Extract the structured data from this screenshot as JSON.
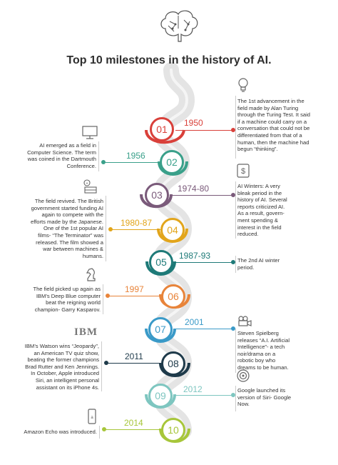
{
  "title": "Top 10 milestones in the history of AI.",
  "icons": {
    "brain": "brain-icon",
    "bulb": "lightbulb-icon",
    "monitor": "monitor-icon",
    "dollar": "dollar-sign-icon",
    "money": "coins-icon",
    "chess": "chess-knight-icon",
    "camera": "movie-camera-icon",
    "target": "target-icon",
    "echo": "amazon-echo-icon"
  },
  "ibm_logo": "IBM",
  "milestones": [
    {
      "number": "01",
      "year": "1950",
      "color": "#d9403a",
      "side": "right",
      "text": [
        "The 1st advancement in the",
        "field made by Alan Turing",
        "through the Turing Test. It said",
        "if a machine could carry on a",
        "conversation that could not be",
        "differentiated from that of a",
        "human, then the machine had",
        "begun “thinking”."
      ]
    },
    {
      "number": "02",
      "year": "1956",
      "color": "#3aa08a",
      "side": "left",
      "text": [
        "AI emerged as a field in",
        "Computer Science. The term",
        "was coined in the Dartmouth",
        "Conference."
      ]
    },
    {
      "number": "03",
      "year": "1974-80",
      "color": "#7a5a7a",
      "side": "right",
      "text": [
        "AI Winters: A very",
        "bleak period in the",
        "history of AI. Several",
        "reports criticized AI.",
        "As a result, govern-",
        "ment spending &",
        "interest in the field",
        "reduced."
      ]
    },
    {
      "number": "04",
      "year": "1980-87",
      "color": "#e2a51b",
      "side": "left",
      "text": [
        "The field revived. The British",
        "government started funding AI",
        "again to compete with the",
        "efforts made by the Japanese.",
        "One of the 1st popular AI",
        "films- “The Terminator” was",
        "released. The film showed a",
        "war between machines &",
        "humans."
      ]
    },
    {
      "number": "05",
      "year": "1987-93",
      "color": "#1e7a78",
      "side": "right",
      "text": [
        "The 2nd AI winter",
        "period."
      ]
    },
    {
      "number": "06",
      "year": "1997",
      "color": "#e8843a",
      "side": "left",
      "text": [
        "The field picked up again as",
        "IBM’s Deep Blue computer",
        "beat the reigning world",
        "champion- Garry Kasparov."
      ]
    },
    {
      "number": "07",
      "year": "2001",
      "color": "#3a9ac8",
      "side": "right",
      "text": [
        "Steven Spielberg",
        "releases “A.I. Artificial",
        "Intelligence”- a tech",
        "noir/drama on a",
        "robotic boy who",
        "dreams to be human."
      ]
    },
    {
      "number": "08",
      "year": "2011",
      "color": "#1e3a4a",
      "side": "left",
      "text": [
        "IBM’s Watson wins “Jeopardy”,",
        "an American TV quiz show,",
        "beating the former champions",
        "Brad Rutter and Ken Jennings.",
        "In October, Apple introduced",
        "Siri, an intelligent personal",
        "assistant on its iPhone 4s."
      ]
    },
    {
      "number": "09",
      "year": "2012",
      "color": "#7ec6c0",
      "side": "right",
      "text": [
        "Google launched its",
        "version of Siri- Google",
        "Now."
      ]
    },
    {
      "number": "10",
      "year": "2014",
      "color": "#a7c63a",
      "side": "left",
      "text": [
        "Amazon Echo was introduced."
      ]
    }
  ]
}
